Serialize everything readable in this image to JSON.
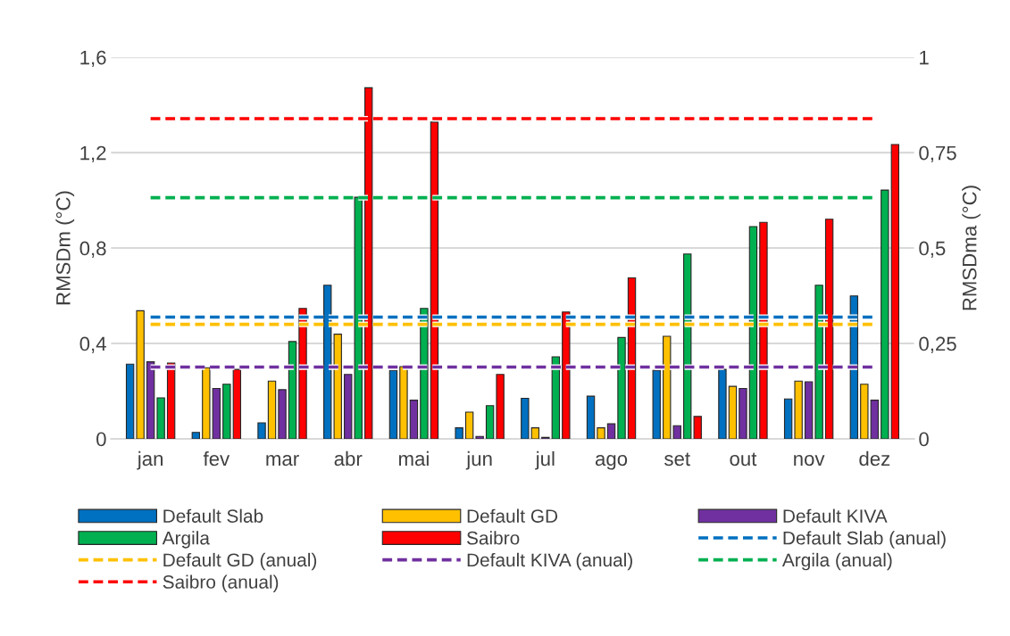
{
  "chart_data": {
    "type": "bar",
    "ylabel": "RMSDm (°C)",
    "y2label": "RMSDma (°C)",
    "categories": [
      "jan",
      "fev",
      "mar",
      "abr",
      "mai",
      "jun",
      "jul",
      "ago",
      "set",
      "out",
      "nov",
      "dez"
    ],
    "series": [
      {
        "name": "Default Slab",
        "color": "#0070c0",
        "values": [
          0.313,
          0.027,
          0.067,
          0.644,
          0.287,
          0.046,
          0.17,
          0.179,
          0.287,
          0.291,
          0.167,
          0.599
        ]
      },
      {
        "name": "Default GD",
        "color": "#ffc000",
        "values": [
          0.537,
          0.298,
          0.242,
          0.439,
          0.303,
          0.112,
          0.046,
          0.046,
          0.43,
          0.22,
          0.242,
          0.229
        ]
      },
      {
        "name": "Default KIVA",
        "color": "#7030a0",
        "values": [
          0.323,
          0.211,
          0.206,
          0.27,
          0.162,
          0.01,
          0.006,
          0.063,
          0.055,
          0.211,
          0.239,
          0.162
        ]
      },
      {
        "name": "Argila",
        "color": "#00b050",
        "values": [
          0.172,
          0.229,
          0.408,
          1.013,
          0.547,
          0.139,
          0.344,
          0.425,
          0.775,
          0.89,
          0.644,
          1.043
        ]
      },
      {
        "name": "Saibro",
        "color": "#ff0000",
        "values": [
          0.318,
          0.291,
          0.547,
          1.472,
          1.328,
          0.27,
          0.532,
          0.675,
          0.094,
          0.908,
          0.921,
          1.234
        ]
      },
      {
        "name": "Default Slab (anual)",
        "type": "line",
        "axis": "y2",
        "line_style": "dashed",
        "color": "#0070c0",
        "values": [
          0.319,
          0.319,
          0.319,
          0.319,
          0.319,
          0.319,
          0.319,
          0.319,
          0.319,
          0.319,
          0.319,
          0.319
        ]
      },
      {
        "name": "Default GD (anual)",
        "type": "line",
        "axis": "y2",
        "line_style": "dashed",
        "color": "#ffc000",
        "values": [
          0.3,
          0.3,
          0.3,
          0.3,
          0.3,
          0.3,
          0.3,
          0.3,
          0.3,
          0.3,
          0.3,
          0.3
        ]
      },
      {
        "name": "Default KIVA (anual)",
        "type": "line",
        "axis": "y2",
        "line_style": "dashed",
        "color": "#7030a0",
        "values": [
          0.188,
          0.188,
          0.188,
          0.188,
          0.188,
          0.188,
          0.188,
          0.188,
          0.188,
          0.188,
          0.188,
          0.188
        ]
      },
      {
        "name": "Argila (anual)",
        "type": "line",
        "axis": "y2",
        "line_style": "dashed",
        "color": "#00b050",
        "values": [
          0.632,
          0.632,
          0.632,
          0.632,
          0.632,
          0.632,
          0.632,
          0.632,
          0.632,
          0.632,
          0.632,
          0.632
        ]
      },
      {
        "name": "Saibro (anual)",
        "type": "line",
        "axis": "y2",
        "line_style": "dashed",
        "color": "#ff0000",
        "values": [
          0.839,
          0.839,
          0.839,
          0.839,
          0.839,
          0.839,
          0.839,
          0.839,
          0.839,
          0.839,
          0.839,
          0.839
        ]
      }
    ],
    "ylim": [
      0,
      1.6
    ],
    "yticks": [
      0,
      {
        "value": 0.4,
        "label": "0,4"
      },
      {
        "value": 0.8,
        "label": "0,8"
      },
      {
        "value": 1.2,
        "label": "1,2"
      },
      {
        "value": 1.6,
        "label": "1,6"
      }
    ],
    "y2lim": [
      0,
      1
    ],
    "y2ticks": [
      0,
      {
        "value": 0.25,
        "label": "0,25"
      },
      {
        "value": 0.5,
        "label": "0,5"
      },
      {
        "value": 0.75,
        "label": "0,75"
      },
      1
    ],
    "grid": "y",
    "legend": "bottom",
    "marker": "none"
  }
}
